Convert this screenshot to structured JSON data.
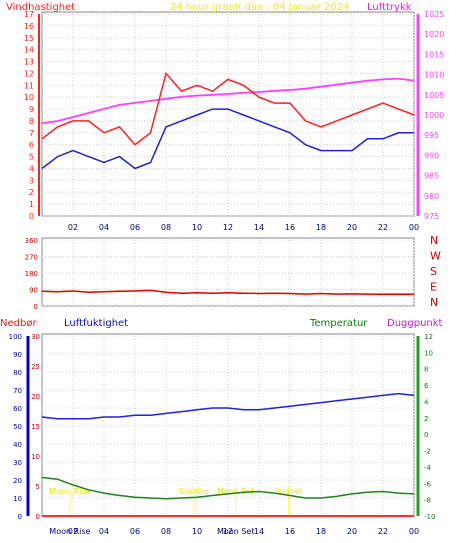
{
  "chart_data": [
    {
      "type": "line",
      "title": "24 hour graph dae : 04 Januar 2024",
      "left_label": "Vindhastighet",
      "right_label": "Lufttrykk",
      "x_ticks": [
        "02",
        "04",
        "06",
        "08",
        "10",
        "12",
        "14",
        "16",
        "18",
        "20",
        "22",
        "00"
      ],
      "left_ticks": [
        "0",
        "1",
        "2",
        "3",
        "4",
        "5",
        "6",
        "7",
        "8",
        "9",
        "10",
        "11",
        "12",
        "13",
        "14",
        "15",
        "16",
        "17"
      ],
      "right_ticks": [
        "975",
        "980",
        "985",
        "990",
        "995",
        "1000",
        "1005",
        "1010",
        "1015",
        "1020",
        "1025"
      ],
      "ylim_left": [
        0,
        17
      ],
      "ylim_right": [
        975,
        1025
      ],
      "x_hours": [
        0,
        1,
        2,
        3,
        4,
        5,
        6,
        7,
        8,
        9,
        10,
        11,
        12,
        13,
        14,
        15,
        16,
        17,
        18,
        19,
        20,
        21,
        22,
        23,
        24
      ],
      "series": [
        {
          "name": "Vindhastighet",
          "color": "#ff2020",
          "values": [
            6.5,
            7.5,
            8.0,
            8.0,
            7.0,
            7.5,
            6.0,
            7.0,
            12.0,
            10.5,
            11.0,
            10.5,
            11.5,
            11.0,
            10.0,
            9.5,
            9.5,
            8.0,
            7.5,
            8.0,
            8.5,
            9.0,
            9.5,
            9.0,
            8.5
          ]
        },
        {
          "name": "Vindkast",
          "color": "#2020d0",
          "values": [
            4.0,
            5.0,
            5.5,
            5.0,
            4.5,
            5.0,
            4.0,
            4.5,
            7.5,
            8.0,
            8.5,
            9.0,
            9.0,
            8.5,
            8.0,
            7.5,
            7.0,
            6.0,
            5.5,
            5.5,
            5.5,
            6.5,
            6.5,
            7.0,
            7.0
          ]
        },
        {
          "name": "Lufttrykk",
          "color": "#ff40ff",
          "axis": "right",
          "values": [
            998,
            998.5,
            999.5,
            1000.5,
            1001.5,
            1002.5,
            1003.0,
            1003.5,
            1004.0,
            1004.5,
            1004.8,
            1005.0,
            1005.2,
            1005.5,
            1005.7,
            1006.0,
            1006.2,
            1006.5,
            1007.0,
            1007.5,
            1008.0,
            1008.5,
            1008.8,
            1009.0,
            1008.5
          ]
        }
      ],
      "colors": {
        "left_axis": "#ff2020",
        "right_axis": "#ff40ff",
        "title": "#ffff00"
      }
    },
    {
      "type": "line",
      "right_labels": [
        "N",
        "W",
        "S",
        "E",
        "N"
      ],
      "left_ticks": [
        "0",
        "90",
        "180",
        "270",
        "360"
      ],
      "x_ticks": [
        "02",
        "04",
        "06",
        "08",
        "10",
        "12",
        "14",
        "16",
        "18",
        "20",
        "22",
        "00"
      ],
      "ylim": [
        0,
        360
      ],
      "x_hours": [
        0,
        1,
        2,
        3,
        4,
        5,
        6,
        7,
        8,
        9,
        10,
        11,
        12,
        13,
        14,
        15,
        16,
        17,
        18,
        19,
        20,
        21,
        22,
        23,
        24
      ],
      "series": [
        {
          "name": "Vindretning",
          "color": "#e00000",
          "values": [
            80,
            78,
            82,
            75,
            78,
            80,
            82,
            85,
            75,
            70,
            72,
            70,
            72,
            70,
            68,
            70,
            68,
            65,
            68,
            65,
            66,
            65,
            64,
            65,
            64
          ]
        }
      ]
    },
    {
      "type": "line",
      "labels": {
        "nedbor": "Nedbør",
        "luftfuktighet": "Luftfuktighet",
        "temperatur": "Temperatur",
        "duggpunkt": "Duggpunkt"
      },
      "nedbor_ticks": [
        "0",
        "10",
        "20",
        "30",
        "40",
        "50",
        "60",
        "70",
        "80",
        "90",
        "100"
      ],
      "luft_ticks": [
        "0",
        "5",
        "10",
        "15",
        "20",
        "25",
        "30"
      ],
      "temp_ticks": [
        "-10",
        "-8",
        "-6",
        "-4",
        "-2",
        "0",
        "2",
        "4",
        "6",
        "8",
        "10",
        "12"
      ],
      "x_ticks": [
        "02",
        "04",
        "06",
        "08",
        "10",
        "12",
        "14",
        "16",
        "18",
        "20",
        "22",
        "00"
      ],
      "ylim_nedbor": [
        0,
        100
      ],
      "ylim_luft": [
        0,
        30
      ],
      "ylim_temp": [
        -10,
        12
      ],
      "x_hours": [
        0,
        1,
        2,
        3,
        4,
        5,
        6,
        7,
        8,
        9,
        10,
        11,
        12,
        13,
        14,
        15,
        16,
        17,
        18,
        19,
        20,
        21,
        22,
        23,
        24
      ],
      "series": [
        {
          "name": "Luftfuktighet",
          "color": "#2020e0",
          "axis": "nedbor",
          "values": [
            55,
            54,
            54,
            54,
            55,
            55,
            56,
            56,
            57,
            58,
            59,
            60,
            60,
            59,
            59,
            60,
            61,
            62,
            63,
            64,
            65,
            66,
            67,
            68,
            67
          ]
        },
        {
          "name": "Temperatur",
          "color": "#208020",
          "axis": "temp",
          "values": [
            -5.3,
            -5.5,
            -6.2,
            -6.8,
            -7.2,
            -7.5,
            -7.7,
            -7.8,
            -7.9,
            -7.8,
            -7.7,
            -7.5,
            -7.3,
            -7.1,
            -7.0,
            -7.2,
            -7.5,
            -7.8,
            -7.8,
            -7.6,
            -7.3,
            -7.1,
            -7.0,
            -7.2,
            -7.3
          ]
        },
        {
          "name": "Nedbør",
          "color": "#ff3030",
          "axis": "nedbor",
          "values": [
            0,
            0,
            0,
            0,
            0,
            0,
            0,
            0,
            0,
            0,
            0,
            0,
            0,
            0,
            0,
            0,
            0,
            0,
            0,
            0,
            0,
            0,
            0,
            0,
            0
          ]
        }
      ],
      "events": [
        {
          "label": "Moon Rise",
          "hour": 1.8
        },
        {
          "label": "Sunrise",
          "hour": 9.8
        },
        {
          "label": "Moon Set",
          "hour": 12.5
        },
        {
          "label": "Sunset",
          "hour": 15.9
        }
      ],
      "x_bottom_labels": [
        "Moon Rise",
        "Moon Set"
      ]
    }
  ]
}
